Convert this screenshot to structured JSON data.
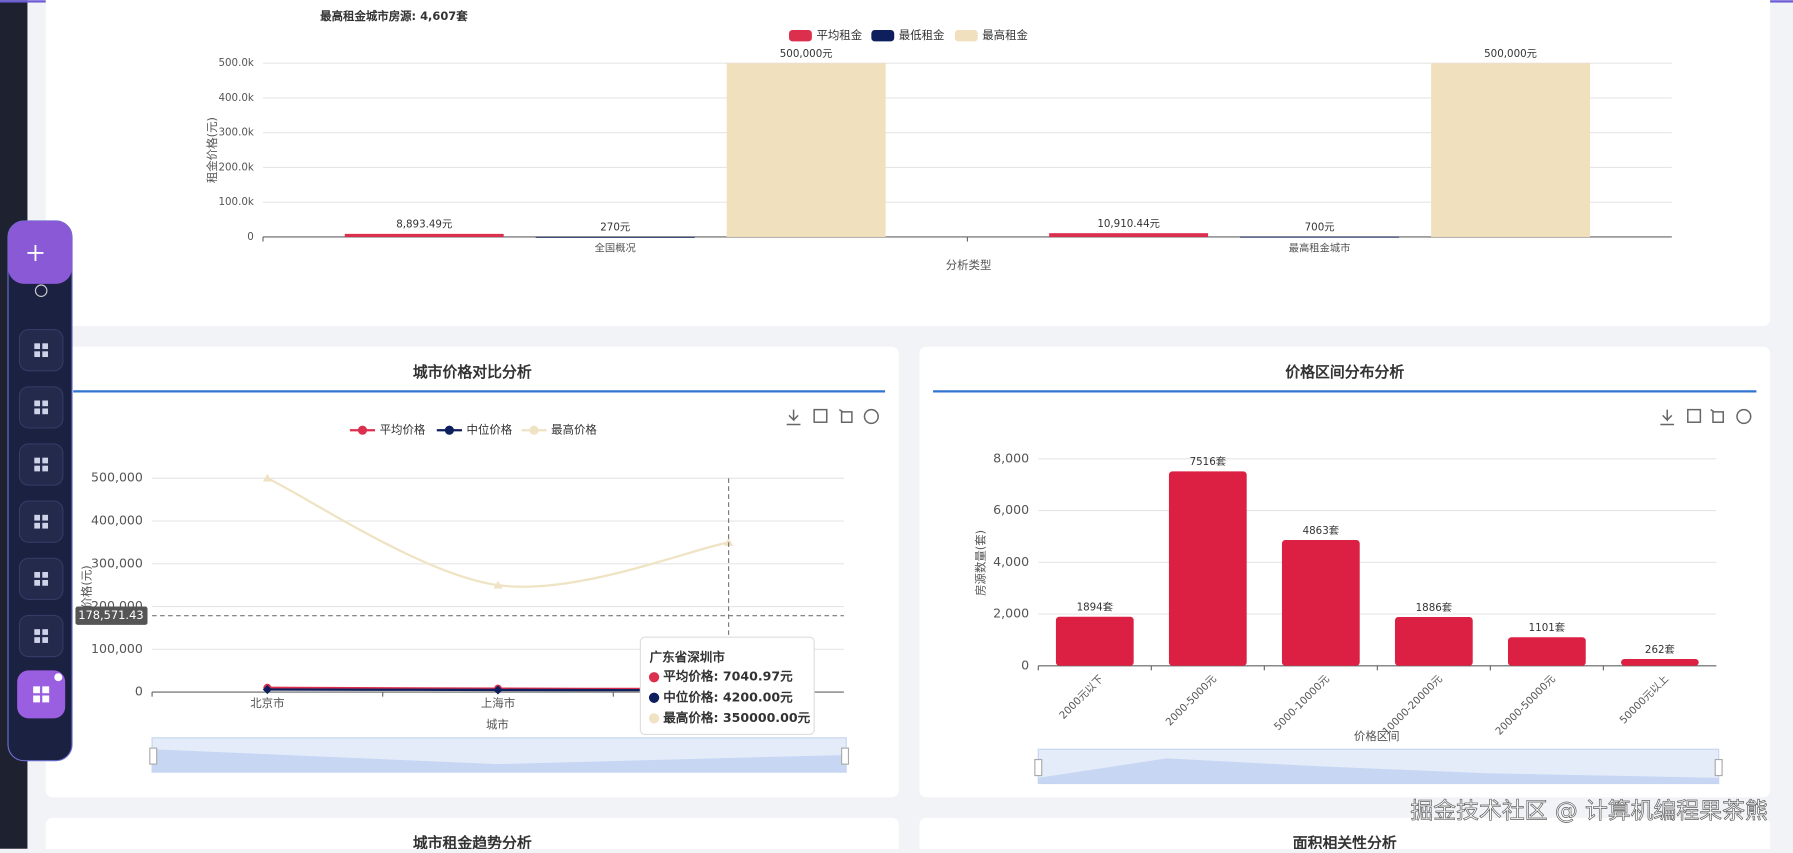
{
  "page": {
    "watermark": "掘金技术社区 @ 计算机编程果茶熊",
    "lower_titles": [
      "城市租金趋势分析",
      "面积相关性分析"
    ],
    "tooltip": {
      "title": "广东省深圳市",
      "rows": [
        "平均价格: 7040.97元",
        "中位价格: 4200.00元",
        "最高价格: 350000.00元"
      ]
    }
  },
  "chart_data": [
    {
      "type": "bar",
      "title": "最高租金城市房源: 4,607套",
      "x_label": "分析类型",
      "y_label": "租金价格(元)",
      "categories": [
        "全国概况",
        "最高租金城市"
      ],
      "series": [
        {
          "name": "平均租金",
          "color": "#dc2f4d",
          "values": [
            8893.49,
            10910.44
          ],
          "value_labels": [
            "8,893.49元",
            "10,910.44元"
          ]
        },
        {
          "name": "最低租金",
          "color": "#0d1f5c",
          "values": [
            270,
            700
          ],
          "value_labels": [
            "270元",
            "700元"
          ]
        },
        {
          "name": "最高租金",
          "color": "#f0e0bd",
          "values": [
            500000,
            500000
          ],
          "value_labels": [
            "500,000元",
            "500,000元"
          ]
        }
      ],
      "ylim": [
        0,
        500000
      ],
      "yticks": [
        0,
        {
          "value": 100000,
          "label": "100.0k"
        },
        {
          "value": 200000,
          "label": "200.0k"
        },
        {
          "value": 300000,
          "label": "300.0k"
        },
        {
          "value": 400000,
          "label": "400.0k"
        },
        {
          "value": 500000,
          "label": "500.0k"
        }
      ],
      "grid": true
    },
    {
      "type": "line",
      "title": "城市价格对比分析",
      "x_label": "城市",
      "y_label": "价格(元)",
      "categories": [
        "北京市",
        "上海市",
        null
      ],
      "series": [
        {
          "name": "平均价格",
          "color": "#dc2f4d",
          "values": [
            10000,
            8000,
            7040.97
          ]
        },
        {
          "name": "中位价格",
          "color": "#0d1f5c",
          "values": [
            6000,
            5000,
            4200
          ]
        },
        {
          "name": "最高价格",
          "color": "#efe3c4",
          "values": [
            500000,
            250000,
            350000
          ]
        }
      ],
      "ylim": [
        0,
        500000
      ],
      "yticks": [
        0,
        {
          "value": 100000,
          "label": "100,000"
        },
        {
          "value": 200000,
          "label": "200,000"
        },
        {
          "value": 300000,
          "label": "300,000"
        },
        {
          "value": 400000,
          "label": "400,000"
        },
        {
          "value": 500000,
          "label": "500,000"
        }
      ],
      "crosshair": {
        "value": 178571.43,
        "label": "178,571.43"
      },
      "grid": true
    },
    {
      "type": "bar",
      "title": "价格区间分布分析",
      "x_label": "价格区间",
      "y_label": "房源数量(套)",
      "categories": [
        "2000元以下",
        "2000-5000元",
        "5000-10000元",
        "10000-20000元",
        "20000-50000元",
        "50000元以上"
      ],
      "values": [
        1894,
        7516,
        4863,
        1886,
        1101,
        262
      ],
      "value_labels": [
        "1894套",
        "7516套",
        "4863套",
        "1886套",
        "1101套",
        "262套"
      ],
      "color": "#dc2043",
      "ylim": [
        0,
        8000
      ],
      "yticks": [
        0,
        {
          "value": 2000,
          "label": "2,000"
        },
        {
          "value": 4000,
          "label": "4,000"
        },
        {
          "value": 6000,
          "label": "6,000"
        },
        {
          "value": 8000,
          "label": "8,000"
        }
      ],
      "grid": true
    }
  ]
}
